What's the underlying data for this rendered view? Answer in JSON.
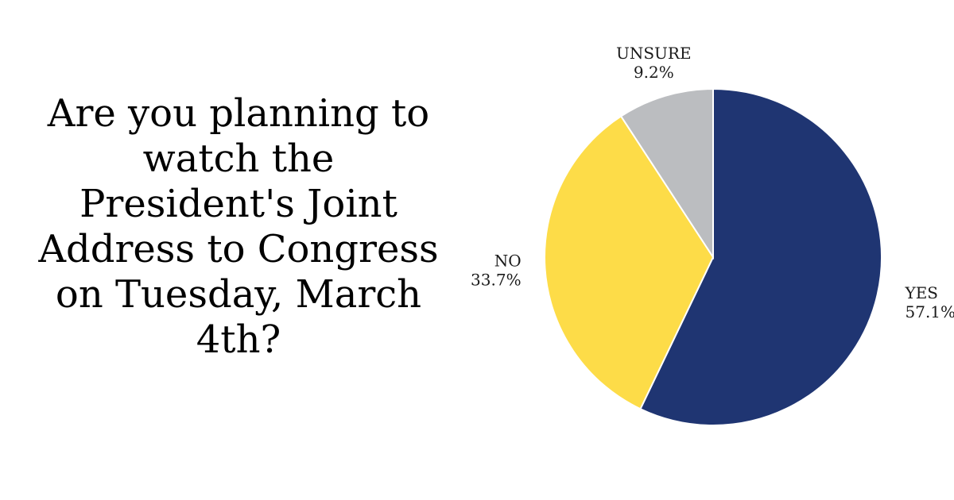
{
  "question": "Are you planning to watch the President's Joint Address to Congress on Tuesday, March 4th?",
  "chart_data": {
    "type": "pie",
    "title": "",
    "categories": [
      "YES",
      "NO",
      "UNSURE"
    ],
    "values": [
      57.1,
      33.7,
      9.2
    ],
    "value_labels": [
      "57.1%",
      "33.7%",
      "9.2%"
    ],
    "colors": [
      "#1f3572",
      "#fddc48",
      "#bbbdc0"
    ],
    "start_angle_deg": 0,
    "direction": "clockwise",
    "label_placement": "outside"
  }
}
